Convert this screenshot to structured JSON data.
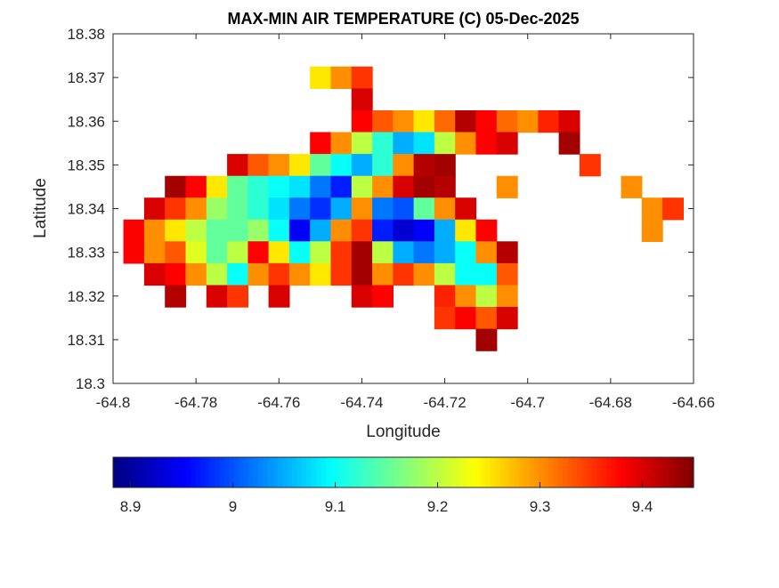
{
  "chart_data": {
    "type": "heatmap",
    "title": "MAX-MIN AIR TEMPERATURE (C) 05-Dec-2025",
    "xlabel": "Longitude",
    "ylabel": "Latitude",
    "xlim": [
      -64.8,
      -64.66
    ],
    "ylim": [
      18.3,
      18.38
    ],
    "xticks": [
      "-64.8",
      "-64.78",
      "-64.76",
      "-64.74",
      "-64.72",
      "-64.7",
      "-64.68",
      "-64.66"
    ],
    "yticks": [
      "18.3",
      "18.31",
      "18.32",
      "18.33",
      "18.34",
      "18.35",
      "18.36",
      "18.37",
      "18.38"
    ],
    "grid": false,
    "colormap": "jet",
    "clim": [
      8.883,
      9.45
    ],
    "colorbar": {
      "location": "bottom",
      "ticks": [
        "8.9",
        "9",
        "9.1",
        "9.2",
        "9.3",
        "9.4"
      ]
    },
    "lon": [
      -64.795,
      -64.79,
      -64.785,
      -64.78,
      -64.775,
      -64.77,
      -64.765,
      -64.76,
      -64.755,
      -64.75,
      -64.745,
      -64.74,
      -64.735,
      -64.73,
      -64.725,
      -64.72,
      -64.715,
      -64.71,
      -64.705,
      -64.7,
      -64.695,
      -64.69,
      -64.685,
      -64.68,
      -64.675,
      -64.67,
      -64.665
    ],
    "rows": [
      {
        "lat": 18.37,
        "values": [
          null,
          null,
          null,
          null,
          null,
          null,
          null,
          null,
          null,
          9.25,
          9.3,
          9.35,
          null,
          null,
          null,
          null,
          null,
          null,
          null,
          null,
          null,
          null,
          null,
          null,
          null,
          null,
          null
        ]
      },
      {
        "lat": 18.365,
        "values": [
          null,
          null,
          null,
          null,
          null,
          null,
          null,
          null,
          null,
          null,
          null,
          9.4,
          null,
          null,
          null,
          null,
          null,
          null,
          null,
          null,
          null,
          null,
          null,
          null,
          null,
          null,
          null
        ]
      },
      {
        "lat": 18.36,
        "values": [
          null,
          null,
          null,
          null,
          null,
          null,
          null,
          null,
          null,
          null,
          null,
          9.38,
          9.33,
          9.3,
          9.25,
          9.32,
          9.42,
          9.38,
          9.32,
          9.3,
          9.36,
          9.4,
          null,
          null,
          null,
          null,
          null
        ]
      },
      {
        "lat": 18.355,
        "values": [
          null,
          null,
          null,
          null,
          null,
          null,
          null,
          null,
          null,
          9.38,
          9.3,
          9.2,
          9.12,
          9.05,
          9.08,
          9.2,
          9.3,
          9.38,
          9.4,
          null,
          null,
          9.43,
          null,
          null,
          null,
          null,
          null
        ]
      },
      {
        "lat": 18.35,
        "values": [
          null,
          null,
          null,
          null,
          null,
          9.4,
          9.33,
          9.3,
          9.25,
          9.15,
          9.1,
          9.05,
          9.12,
          9.3,
          9.42,
          9.43,
          null,
          null,
          null,
          null,
          null,
          null,
          9.35,
          null,
          null,
          null,
          null
        ]
      },
      {
        "lat": 18.345,
        "values": [
          null,
          null,
          9.43,
          9.38,
          9.25,
          9.15,
          9.12,
          9.1,
          9.08,
          9.02,
          8.97,
          9.2,
          9.3,
          9.4,
          9.43,
          9.42,
          null,
          null,
          9.3,
          null,
          null,
          null,
          null,
          null,
          9.3,
          null,
          null
        ]
      },
      {
        "lat": 18.34,
        "values": [
          null,
          9.4,
          9.35,
          9.3,
          9.18,
          9.15,
          9.12,
          9.08,
          9.02,
          8.98,
          9.05,
          9.3,
          9.02,
          9.0,
          9.15,
          9.3,
          9.4,
          null,
          null,
          null,
          null,
          null,
          null,
          null,
          null,
          9.3,
          9.35
        ]
      },
      {
        "lat": 18.335,
        "values": [
          9.38,
          9.3,
          9.25,
          9.2,
          9.15,
          9.15,
          9.18,
          9.1,
          8.95,
          9.05,
          9.3,
          9.35,
          8.97,
          8.93,
          8.95,
          9.05,
          9.25,
          9.38,
          null,
          null,
          null,
          null,
          null,
          null,
          null,
          9.3,
          null
        ]
      },
      {
        "lat": 18.33,
        "values": [
          9.38,
          9.3,
          9.33,
          9.22,
          9.15,
          9.2,
          9.38,
          9.25,
          9.1,
          9.2,
          9.35,
          9.43,
          9.2,
          9.05,
          9.02,
          9.05,
          9.1,
          9.3,
          9.42,
          null,
          null,
          null,
          null,
          null,
          null,
          null,
          null
        ]
      },
      {
        "lat": 18.325,
        "values": [
          null,
          9.4,
          9.38,
          9.3,
          9.2,
          9.1,
          9.3,
          9.35,
          9.3,
          9.25,
          9.35,
          9.43,
          9.3,
          9.35,
          9.3,
          9.2,
          9.1,
          9.1,
          9.33,
          null,
          null,
          null,
          null,
          null,
          null,
          null,
          null
        ]
      },
      {
        "lat": 18.32,
        "values": [
          null,
          null,
          9.42,
          null,
          9.4,
          9.35,
          null,
          9.4,
          null,
          null,
          null,
          9.4,
          9.38,
          null,
          null,
          9.36,
          9.3,
          9.2,
          9.3,
          null,
          null,
          null,
          null,
          null,
          null,
          null,
          null
        ]
      },
      {
        "lat": 18.315,
        "values": [
          null,
          null,
          null,
          null,
          null,
          null,
          null,
          null,
          null,
          null,
          null,
          null,
          null,
          null,
          null,
          9.35,
          9.38,
          9.33,
          9.4,
          null,
          null,
          null,
          null,
          null,
          null,
          null,
          null
        ]
      },
      {
        "lat": 18.31,
        "values": [
          null,
          null,
          null,
          null,
          null,
          null,
          null,
          null,
          null,
          null,
          null,
          null,
          null,
          null,
          null,
          null,
          null,
          9.43,
          null,
          null,
          null,
          null,
          null,
          null,
          null,
          null,
          null
        ]
      }
    ]
  }
}
